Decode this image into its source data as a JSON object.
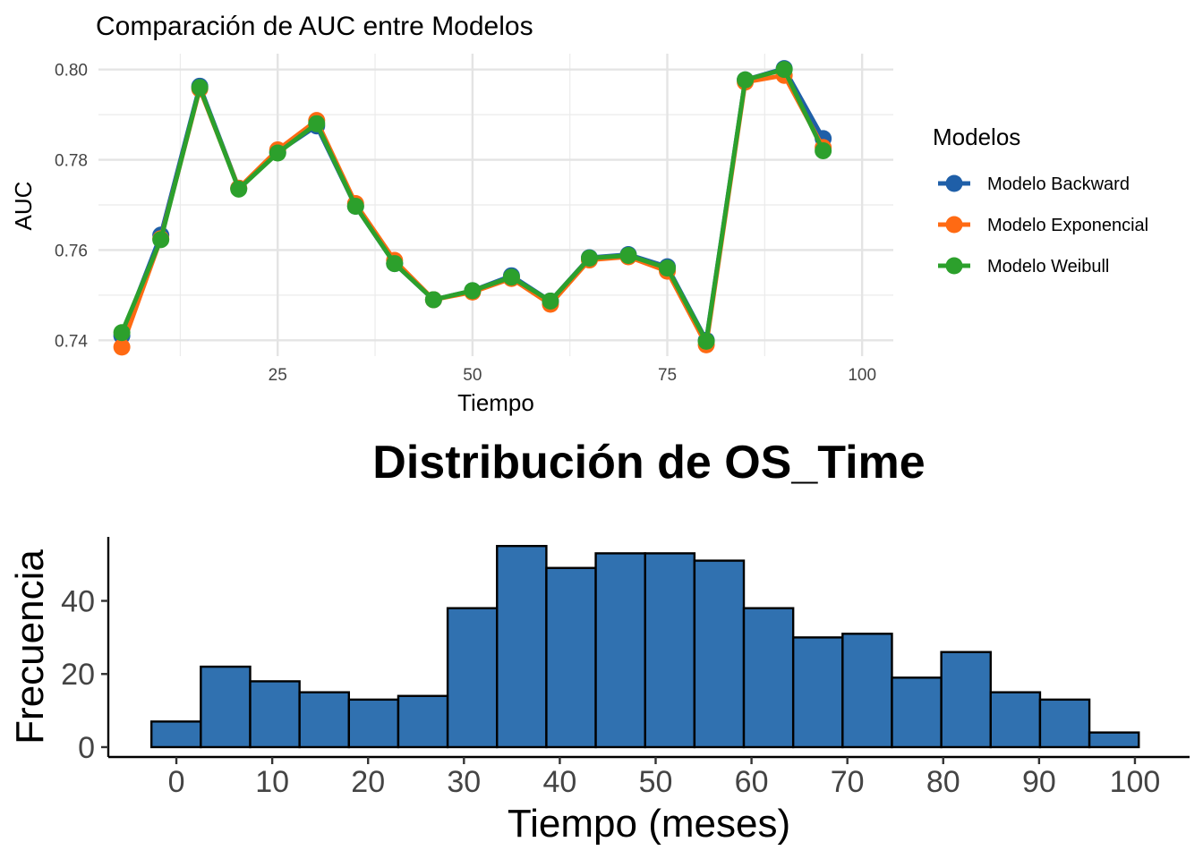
{
  "chart_data": [
    {
      "type": "line",
      "title": "Comparación de AUC entre Modelos",
      "xlabel": "Tiempo",
      "ylabel": "AUC",
      "xlim": [
        2,
        104
      ],
      "ylim": [
        0.7365,
        0.8035
      ],
      "x_ticks": [
        25,
        50,
        75,
        100
      ],
      "y_ticks": [
        0.74,
        0.76,
        0.78,
        0.8
      ],
      "y_tick_labels": [
        "0.74",
        "0.76",
        "0.78",
        "0.80"
      ],
      "grid": true,
      "legend": {
        "title": "Modelos",
        "position": "right"
      },
      "x": [
        5,
        10,
        15,
        20,
        25,
        30,
        35,
        40,
        45,
        50,
        55,
        60,
        65,
        70,
        75,
        80,
        85,
        90,
        95
      ],
      "series": [
        {
          "name": "Modelo Backward",
          "color": "#1f5fa8",
          "values": [
            0.741,
            0.7633,
            0.7963,
            0.7737,
            0.7817,
            0.7875,
            0.7697,
            0.757,
            0.749,
            0.751,
            0.7543,
            0.7487,
            0.7583,
            0.759,
            0.7563,
            0.74,
            0.7977,
            0.8002,
            0.7847
          ]
        },
        {
          "name": "Modelo Exponencial",
          "color": "#ff6a13",
          "values": [
            0.7385,
            0.7625,
            0.7957,
            0.7737,
            0.7822,
            0.7887,
            0.7703,
            0.7577,
            0.749,
            0.7507,
            0.7537,
            0.748,
            0.7578,
            0.7585,
            0.7553,
            0.739,
            0.7972,
            0.7987,
            0.7827
          ]
        },
        {
          "name": "Modelo Weibull",
          "color": "#2ca02c",
          "values": [
            0.7417,
            0.7623,
            0.796,
            0.7735,
            0.7815,
            0.788,
            0.7697,
            0.757,
            0.749,
            0.751,
            0.754,
            0.7487,
            0.7582,
            0.7588,
            0.756,
            0.7398,
            0.7977,
            0.8,
            0.782
          ]
        }
      ]
    },
    {
      "type": "bar",
      "title": "Distribución de OS_Time",
      "xlabel": "Tiempo (meses)",
      "ylabel": "Frecuencia",
      "xlim": [
        -7.1,
        105.7
      ],
      "ylim": [
        -2.7,
        57.5
      ],
      "x_ticks": [
        0,
        10,
        20,
        30,
        40,
        50,
        60,
        70,
        80,
        90,
        100
      ],
      "y_ticks": [
        0,
        20,
        40
      ],
      "bar_color": "#3071b0",
      "edge_color": "#000000",
      "bin_width": 5.15,
      "bin_start": -2.6,
      "values": [
        7,
        22,
        18,
        15,
        13,
        14,
        38,
        55,
        49,
        53,
        53,
        51,
        38,
        30,
        31,
        19,
        26,
        15,
        13,
        4
      ]
    }
  ]
}
